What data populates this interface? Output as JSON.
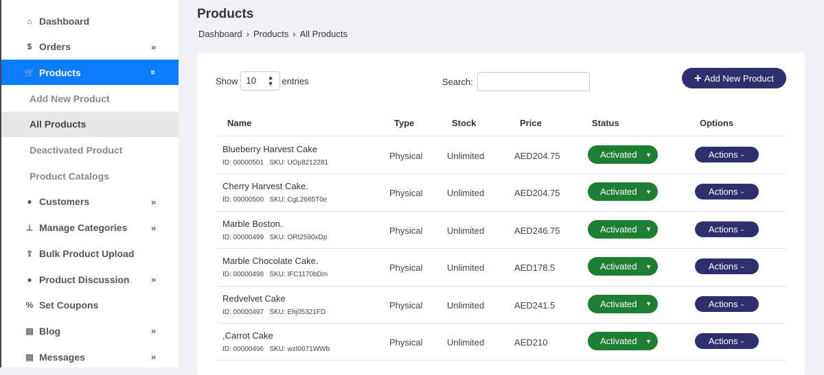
{
  "sidebar": {
    "items": [
      {
        "label": "Dashboard",
        "icon": "home-icon",
        "glyph": "⌂",
        "chev": ""
      },
      {
        "label": "Orders",
        "icon": "hand-dollar-icon",
        "glyph": "$",
        "chev": "»"
      },
      {
        "label": "Products",
        "icon": "cart-icon",
        "glyph": "🛒",
        "chev": "»",
        "active": true
      },
      {
        "label": "Add New Product",
        "sub": true
      },
      {
        "label": "All Products",
        "sub": true,
        "selected": true
      },
      {
        "label": "Deactivated Product",
        "sub": true
      },
      {
        "label": "Product Catalogs",
        "sub": true
      },
      {
        "label": "Customers",
        "icon": "user-icon",
        "glyph": "●",
        "chev": "»"
      },
      {
        "label": "Manage Categories",
        "icon": "sitemap-icon",
        "glyph": "⊥",
        "chev": "»"
      },
      {
        "label": "Bulk Product Upload",
        "icon": "upload-icon",
        "glyph": "⇪",
        "chev": ""
      },
      {
        "label": "Product Discussion",
        "icon": "comment-icon",
        "glyph": "●",
        "chev": "»"
      },
      {
        "label": "Set Coupons",
        "icon": "percent-icon",
        "glyph": "%",
        "chev": ""
      },
      {
        "label": "Blog",
        "icon": "blog-icon",
        "glyph": "▤",
        "chev": "»"
      },
      {
        "label": "Messages",
        "icon": "messages-icon",
        "glyph": "▤",
        "chev": "»"
      }
    ]
  },
  "header": {
    "title": "Products",
    "breadcrumb": [
      "Dashboard",
      "Products",
      "All Products"
    ],
    "sep": "›"
  },
  "controls": {
    "show": "Show",
    "entries_value": "10",
    "entries": "entries",
    "search_label": "Search:",
    "search_value": "",
    "add_button": "Add New Product"
  },
  "table": {
    "headers": [
      "Name",
      "Type",
      "Stock",
      "Price",
      "Status",
      "Options"
    ],
    "rows": [
      {
        "name": "Blueberry Harvest Cake",
        "meta": "ID: 00000501   SKU: UOp8212281",
        "type": "Physical",
        "stock": "Unlimited",
        "price": "AED204.75",
        "status": "Activated",
        "options": "Actions"
      },
      {
        "name": "Cherry Harvest Cake.",
        "meta": "ID: 00000500   SKU: CgL2665T0e",
        "type": "Physical",
        "stock": "Unlimited",
        "price": "AED204.75",
        "status": "Activated",
        "options": "Actions"
      },
      {
        "name": "Marble Boston.",
        "meta": "ID: 00000499   SKU: ORt2590xDp",
        "type": "Physical",
        "stock": "Unlimited",
        "price": "AED246.75",
        "status": "Activated",
        "options": "Actions"
      },
      {
        "name": "Marble Chocolate Cake.",
        "meta": "ID: 00000498   SKU: IFC1170bDm",
        "type": "Physical",
        "stock": "Unlimited",
        "price": "AED178.5",
        "status": "Activated",
        "options": "Actions"
      },
      {
        "name": "Redvelvet Cake",
        "meta": "ID: 00000497   SKU: Ehj05321FD",
        "type": "Physical",
        "stock": "Unlimited",
        "price": "AED241.5",
        "status": "Activated",
        "options": "Actions"
      },
      {
        "name": ",Carrot Cake",
        "meta": "ID: 00000496   SKU: wzt0071WWb",
        "type": "Physical",
        "stock": "Unlimited",
        "price": "AED210",
        "status": "Activated",
        "options": "Actions"
      }
    ]
  },
  "colors": {
    "sidebar_active": "#0a7cff",
    "primary": "#2d2f6e",
    "status_green": "#1e7e34"
  }
}
